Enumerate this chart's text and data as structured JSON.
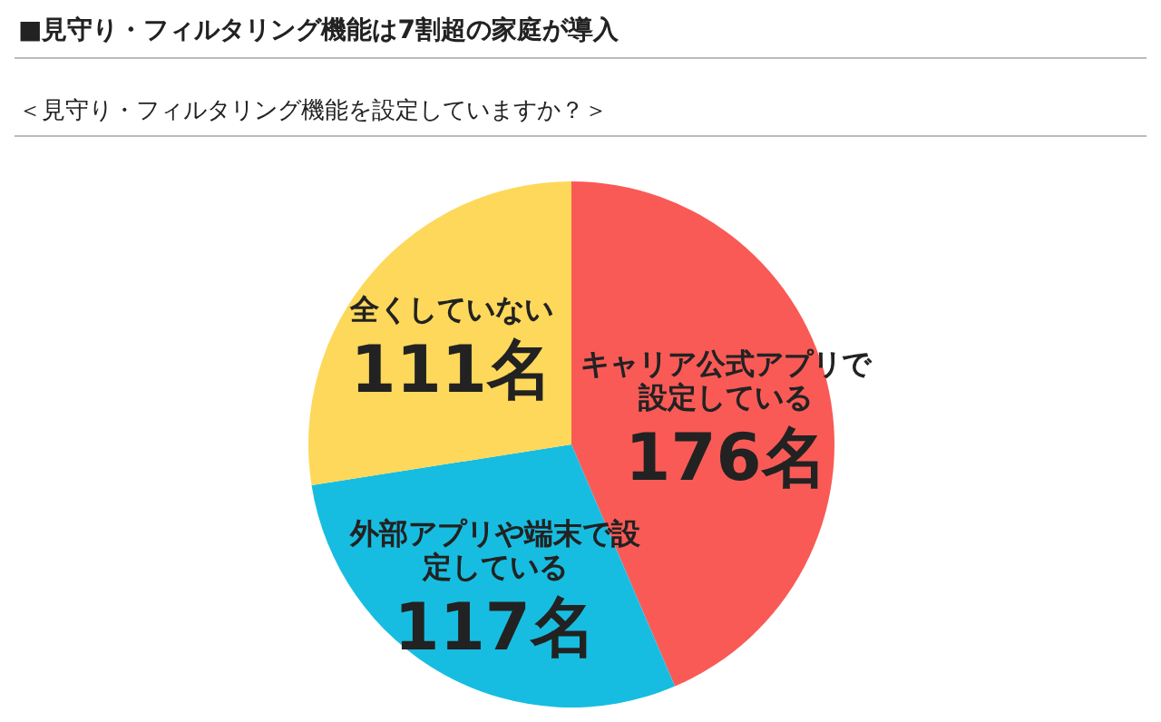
{
  "chart_data": {
    "type": "pie",
    "title": "■見守り・フィルタリング機能は7割超の家庭が導入",
    "subtitle": "＜見守り・フィルタリング機能を設定していますか？＞",
    "categories": [
      "キャリア公式アプリで設定している",
      "外部アプリや端末で設定している",
      "全くしていない"
    ],
    "values": [
      176,
      117,
      111
    ],
    "colors": [
      "#f95a56",
      "#17bde0",
      "#fdd85b"
    ],
    "value_labels": [
      "176名",
      "117名",
      "111名"
    ]
  }
}
